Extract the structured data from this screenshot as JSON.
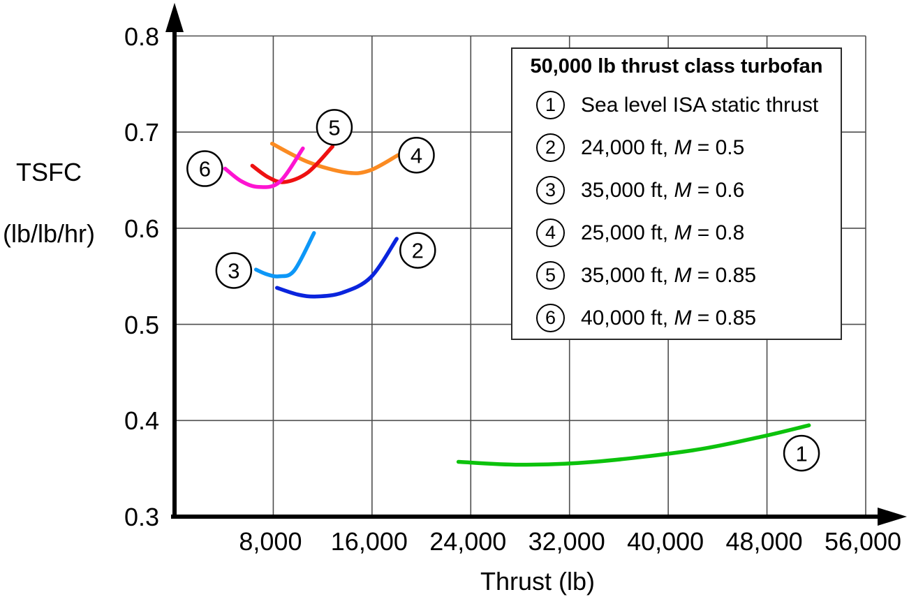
{
  "legend": {
    "title": "50,000 lb thrust class turbofan",
    "items": [
      {
        "num": "1",
        "prefix": "Sea level ISA static thrust",
        "m": "",
        "suffix": ""
      },
      {
        "num": "2",
        "prefix": "24,000 ft, ",
        "m": "M",
        "suffix": " = 0.5"
      },
      {
        "num": "3",
        "prefix": "35,000 ft, ",
        "m": "M",
        "suffix": " = 0.6"
      },
      {
        "num": "4",
        "prefix": "25,000 ft, ",
        "m": "M",
        "suffix": " = 0.8"
      },
      {
        "num": "5",
        "prefix": "35,000 ft, ",
        "m": "M",
        "suffix": " = 0.85"
      },
      {
        "num": "6",
        "prefix": "40,000 ft, ",
        "m": "M",
        "suffix": " = 0.85"
      }
    ]
  },
  "axes": {
    "x_title": "Thrust (lb)",
    "y_title_line1": "TSFC",
    "y_title_line2": "(lb/lb/hr)"
  },
  "chart_data": {
    "type": "line",
    "title": "50,000 lb thrust class turbofan",
    "xlabel": "Thrust (lb)",
    "ylabel": "TSFC (lb/lb/hr)",
    "xlim": [
      0,
      56000
    ],
    "ylim": [
      0.3,
      0.8
    ],
    "grid": true,
    "legend_position": "upper right",
    "grid_color": "#4d4d4d",
    "axis_color": "#000000",
    "x_ticks": [
      {
        "value": 8000,
        "label": "8,000"
      },
      {
        "value": 16000,
        "label": "16,000"
      },
      {
        "value": 24000,
        "label": "24,000"
      },
      {
        "value": 32000,
        "label": "32,000"
      },
      {
        "value": 40000,
        "label": "40,000"
      },
      {
        "value": 48000,
        "label": "48,000"
      },
      {
        "value": 56000,
        "label": "56,000"
      }
    ],
    "y_ticks": [
      {
        "value": 0.8,
        "label": "0.8"
      },
      {
        "value": 0.7,
        "label": "0.7"
      },
      {
        "value": 0.6,
        "label": "0.6"
      },
      {
        "value": 0.5,
        "label": "0.5"
      },
      {
        "value": 0.4,
        "label": "0.4"
      },
      {
        "value": 0.3,
        "label": "0.3"
      }
    ],
    "series": [
      {
        "id": "1",
        "name": "Sea level ISA static thrust",
        "color": "#0cc20c",
        "points": [
          [
            23000,
            0.357
          ],
          [
            28000,
            0.354
          ],
          [
            34000,
            0.357
          ],
          [
            42000,
            0.369
          ],
          [
            47500,
            0.383
          ],
          [
            51400,
            0.395
          ]
        ],
        "label_pos": [
          50800,
          0.366
        ]
      },
      {
        "id": "2",
        "name": "24,000 ft, M = 0.5",
        "color": "#0a24dd",
        "points": [
          [
            8300,
            0.538
          ],
          [
            10000,
            0.531
          ],
          [
            11500,
            0.529
          ],
          [
            13600,
            0.533
          ],
          [
            15900,
            0.549
          ],
          [
            18000,
            0.589
          ]
        ],
        "label_pos": [
          19700,
          0.577
        ]
      },
      {
        "id": "3",
        "name": "35,000 ft, M = 0.6",
        "color": "#0d97f7",
        "points": [
          [
            6600,
            0.557
          ],
          [
            7500,
            0.552
          ],
          [
            8500,
            0.55
          ],
          [
            9700,
            0.556
          ],
          [
            11300,
            0.595
          ]
        ],
        "label_pos": [
          4800,
          0.556
        ]
      },
      {
        "id": "4",
        "name": "25,000 ft, M = 0.8",
        "color": "#fb8b22",
        "points": [
          [
            7900,
            0.688
          ],
          [
            10800,
            0.669
          ],
          [
            13900,
            0.658
          ],
          [
            15800,
            0.66
          ],
          [
            18100,
            0.676
          ]
        ],
        "label_pos": [
          19600,
          0.676
        ]
      },
      {
        "id": "5",
        "name": "35,000 ft, M = 0.85",
        "color": "#ee1111",
        "points": [
          [
            6300,
            0.665
          ],
          [
            7600,
            0.653
          ],
          [
            8900,
            0.648
          ],
          [
            10800,
            0.658
          ],
          [
            12800,
            0.685
          ]
        ],
        "label_pos": [
          12950,
          0.705
        ]
      },
      {
        "id": "6",
        "name": "40,000 ft, M = 0.85",
        "color": "#fd14d1",
        "points": [
          [
            4100,
            0.662
          ],
          [
            5400,
            0.649
          ],
          [
            6800,
            0.643
          ],
          [
            8500,
            0.648
          ],
          [
            10400,
            0.683
          ]
        ],
        "label_pos": [
          2450,
          0.662
        ]
      }
    ]
  }
}
